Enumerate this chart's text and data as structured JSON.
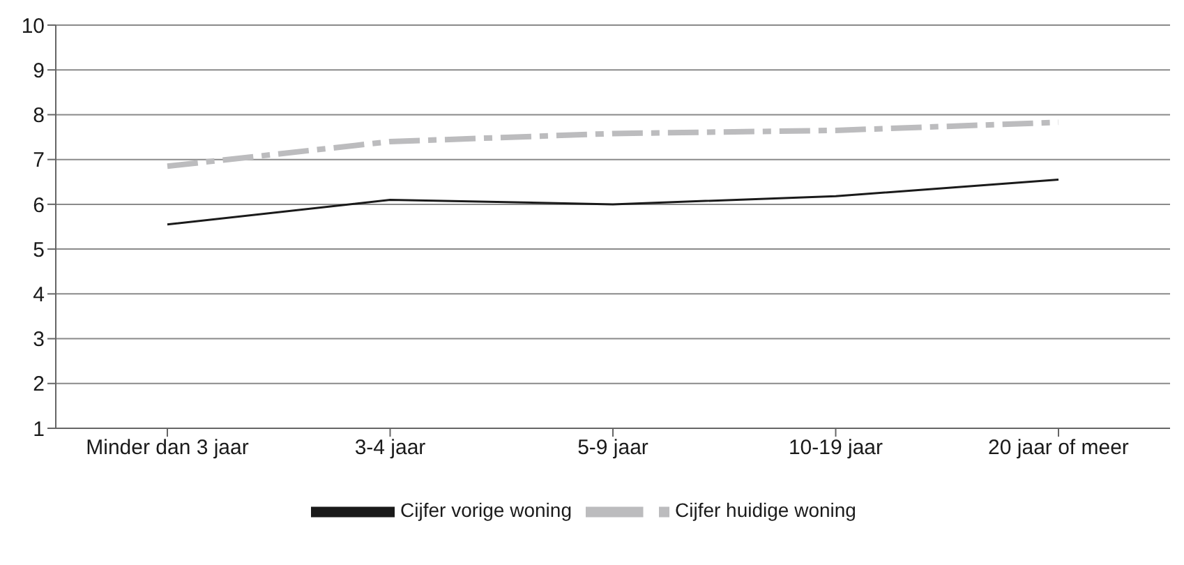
{
  "chart_data": {
    "type": "line",
    "categories": [
      "Minder dan 3 jaar",
      "3-4 jaar",
      "5-9 jaar",
      "10-19 jaar",
      "20 jaar of meer"
    ],
    "series": [
      {
        "name": "Cijfer vorige woning",
        "color": "#1a1a1a",
        "line_style": "solid",
        "values": [
          5.55,
          6.1,
          6.0,
          6.18,
          6.55
        ]
      },
      {
        "name": "Cijfer huidige woning",
        "color": "#bcbcbe",
        "line_style": "dashed",
        "values": [
          6.85,
          7.4,
          7.58,
          7.65,
          7.83
        ]
      }
    ],
    "ylim": [
      1,
      10
    ],
    "yticks": [
      1,
      2,
      3,
      4,
      5,
      6,
      7,
      8,
      9,
      10
    ],
    "grid": "y",
    "legend": "bottom",
    "marker": "none"
  }
}
